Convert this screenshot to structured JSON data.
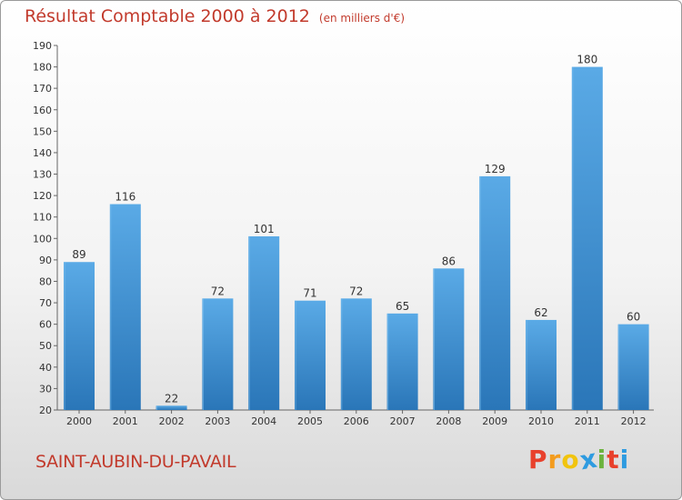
{
  "header": {
    "title": "Résultat Comptable 2000 à 2012",
    "subtitle": "(en milliers d'€)"
  },
  "footer": {
    "place": "SAINT-AUBIN-DU-PAVAIL",
    "logo": "Proxiti"
  },
  "colors": {
    "title": "#c23a2c",
    "bar_top": "#5aaae6",
    "bar_bottom": "#2a76b8",
    "logo_letters": [
      "#e8412c",
      "#f39c1e",
      "#f1c40f",
      "#2e9be0",
      "#6cb33e",
      "#e8412c",
      "#2e9be0"
    ]
  },
  "chart_data": {
    "type": "bar",
    "title": "Résultat Comptable 2000 à 2012",
    "subtitle": "(en milliers d'€)",
    "categories": [
      "2000",
      "2001",
      "2002",
      "2003",
      "2004",
      "2005",
      "2006",
      "2007",
      "2008",
      "2009",
      "2010",
      "2011",
      "2012"
    ],
    "values": [
      89,
      116,
      22,
      72,
      101,
      71,
      72,
      65,
      86,
      129,
      62,
      180,
      60
    ],
    "ylim": [
      20,
      190
    ],
    "yticks": [
      20,
      30,
      40,
      50,
      60,
      70,
      80,
      90,
      100,
      110,
      120,
      130,
      140,
      150,
      160,
      170,
      180,
      190
    ],
    "grid": false,
    "legend": "none"
  }
}
